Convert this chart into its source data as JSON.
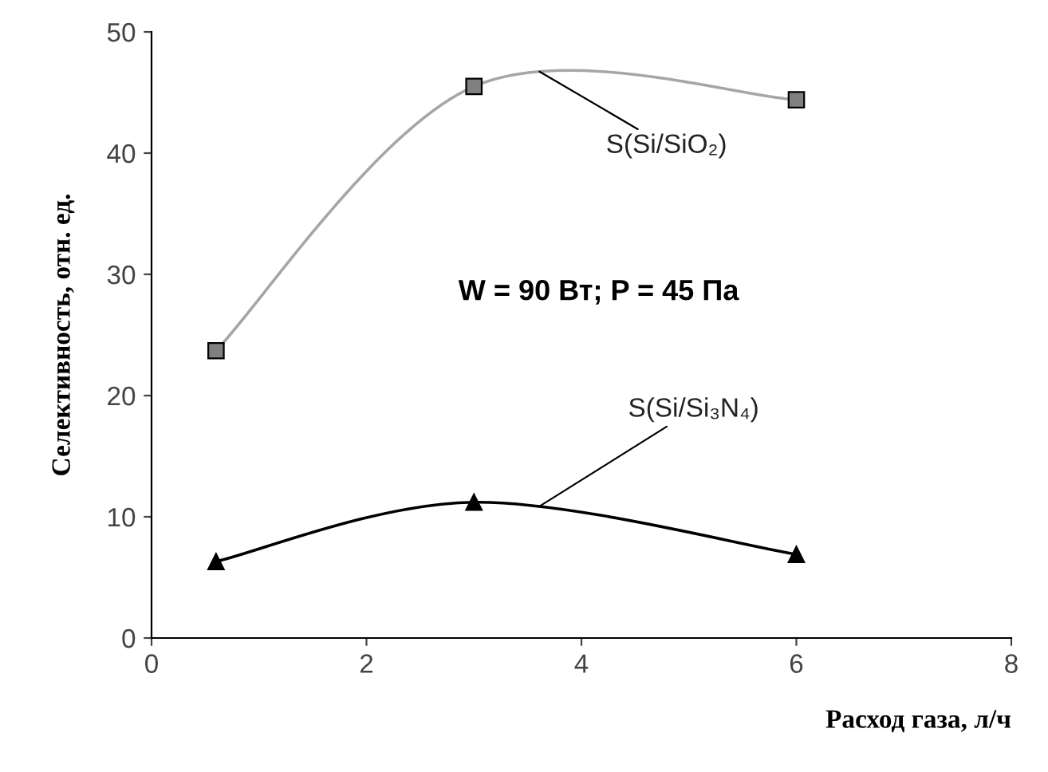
{
  "chart_data": {
    "type": "line",
    "xlabel": "Расход газа, л/ч",
    "ylabel": "Селективность, отн. ед.",
    "xlim": [
      0,
      8
    ],
    "xticks": [
      0,
      2,
      4,
      6,
      8
    ],
    "ylim": [
      0,
      50
    ],
    "yticks": [
      0,
      10,
      20,
      30,
      40,
      50
    ],
    "grid": false,
    "series": [
      {
        "name": "S(Si/SiO₂)",
        "color": "#a6a6a6",
        "marker": "square",
        "x": [
          0.6,
          3,
          6
        ],
        "values": [
          23.7,
          45.5,
          44.4
        ]
      },
      {
        "name": "S(Si/Si₃N₄)",
        "color": "#000000",
        "marker": "triangle",
        "x": [
          0.6,
          3,
          6
        ],
        "values": [
          6.3,
          11.2,
          6.9
        ]
      }
    ],
    "annotations": [
      "W = 90 Вт; P = 45 Па"
    ]
  }
}
